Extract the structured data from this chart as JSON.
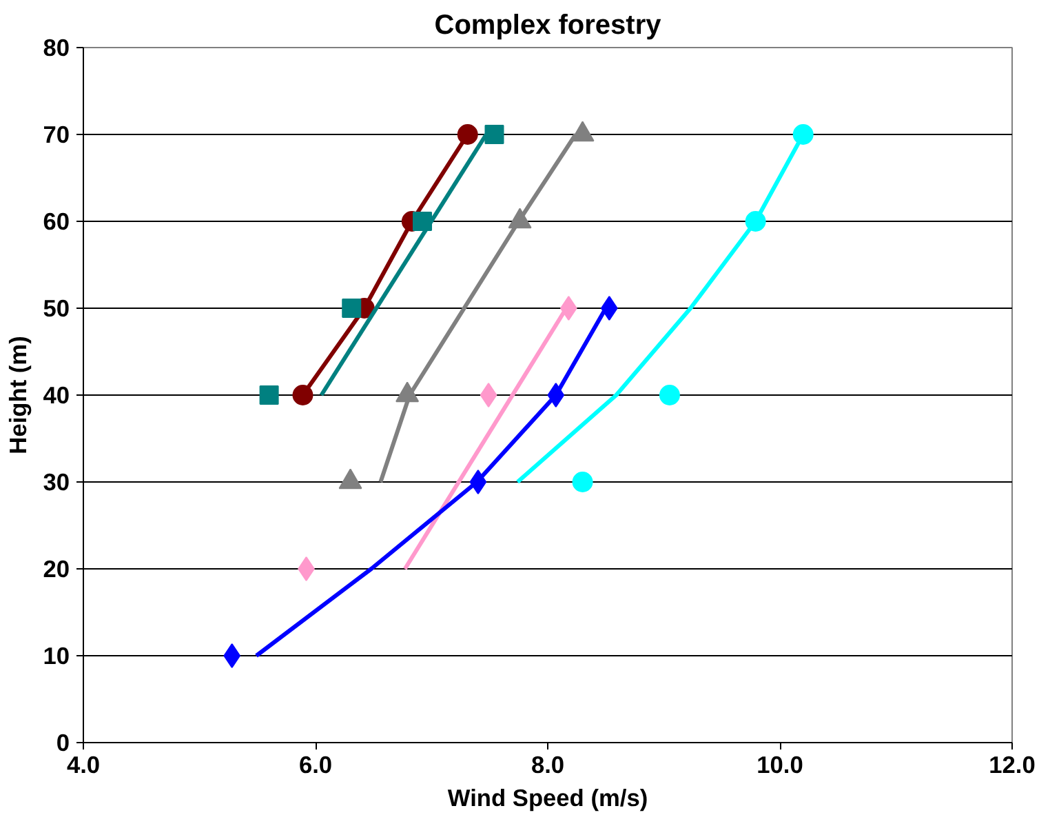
{
  "chart_data": {
    "type": "scatter",
    "title": "Complex forestry",
    "xlabel": "Wind Speed (m/s)",
    "ylabel": "Height (m)",
    "xlim": [
      4,
      12
    ],
    "ylim": [
      0,
      80
    ],
    "xticks": [
      {
        "value": 4,
        "label": "4.0"
      },
      {
        "value": 6,
        "label": "6.0"
      },
      {
        "value": 8,
        "label": "8.0"
      },
      {
        "value": 10,
        "label": "10.0"
      },
      {
        "value": 12,
        "label": "12.0"
      }
    ],
    "yticks": [
      0,
      10,
      20,
      30,
      40,
      50,
      60,
      70,
      80
    ],
    "grid": "y",
    "series": [
      {
        "type": "line",
        "marker": "circle",
        "color": "#800000",
        "x": [
          5.89,
          6.42,
          6.83,
          7.31
        ],
        "values": [
          40,
          50,
          60,
          70
        ]
      },
      {
        "marker": "square",
        "color": "#008080",
        "x": [
          5.6,
          6.31,
          6.92,
          7.54
        ],
        "values": [
          40,
          50,
          60,
          70
        ]
      },
      {
        "type": "line",
        "marker": "none",
        "color": "#008080",
        "x": [
          6.05,
          7.47
        ],
        "values": [
          40,
          70
        ]
      },
      {
        "marker": "triangle",
        "color": "#808080",
        "x": [
          6.3,
          6.79,
          7.76,
          8.3
        ],
        "values": [
          30,
          40,
          60,
          70
        ]
      },
      {
        "type": "line",
        "marker": "none",
        "color": "#808080",
        "x": [
          6.56,
          6.81,
          7.75,
          8.24
        ],
        "values": [
          30,
          40,
          60,
          70
        ]
      },
      {
        "marker": "diamond",
        "color": "#ff99cc",
        "x": [
          5.92,
          7.49,
          8.18
        ],
        "values": [
          20,
          40,
          50
        ]
      },
      {
        "type": "line",
        "marker": "none",
        "color": "#ff99cc",
        "x": [
          6.77,
          8.16
        ],
        "values": [
          20,
          50
        ]
      },
      {
        "marker": "diamond",
        "color": "#0000ff",
        "x": [
          5.28,
          7.4,
          8.07,
          8.53
        ],
        "values": [
          10,
          30,
          40,
          50
        ]
      },
      {
        "type": "line",
        "marker": "none",
        "color": "#0000ff",
        "x": [
          5.49,
          6.48,
          7.39,
          8.07,
          8.5
        ],
        "values": [
          10,
          20,
          30,
          40,
          50
        ]
      },
      {
        "marker": "circle",
        "color": "#00ffff",
        "x": [
          8.3,
          9.05,
          9.79,
          10.2
        ],
        "values": [
          30,
          40,
          60,
          70
        ]
      },
      {
        "type": "line",
        "marker": "none",
        "color": "#00ffff",
        "x": [
          7.74,
          8.59,
          9.23,
          9.79,
          10.2
        ],
        "values": [
          30,
          40,
          50,
          60,
          70
        ]
      }
    ]
  }
}
